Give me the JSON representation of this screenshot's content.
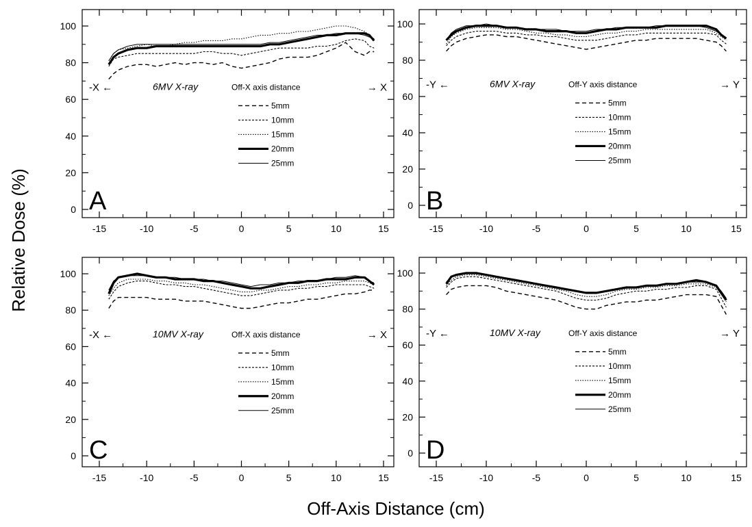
{
  "figure": {
    "ylabel": "Relative Dose (%)",
    "xlabel": "Off-Axis Distance (cm)"
  },
  "chart_data": [
    {
      "type": "line",
      "panel_letter": "A",
      "energy": "6MV X-ray",
      "legend_title": "Off-X axis distance",
      "left_marker": "-X ←",
      "right_marker": "→ X",
      "xlim": [
        -15,
        15
      ],
      "ylim": [
        0,
        100
      ],
      "x_ticks": [
        -15,
        -10,
        -5,
        0,
        5,
        10,
        15
      ],
      "y_ticks": [
        0,
        20,
        40,
        60,
        80,
        100
      ],
      "grid": false,
      "legend_position": "center-right",
      "x": [
        -14,
        -13.5,
        -13,
        -12,
        -11,
        -10,
        -9,
        -8,
        -7,
        -6,
        -5,
        -4,
        -3,
        -2,
        -1,
        0,
        1,
        2,
        3,
        4,
        5,
        6,
        7,
        8,
        9,
        10,
        11,
        12,
        13,
        13.5,
        14
      ],
      "series": [
        {
          "name": "5mm",
          "values": [
            71,
            74,
            76,
            78,
            79,
            79,
            78,
            79,
            80,
            79,
            80,
            80,
            79,
            80,
            78,
            77,
            78,
            79,
            80,
            82,
            83,
            83,
            83,
            84,
            86,
            88,
            91,
            86,
            84,
            86,
            86
          ]
        },
        {
          "name": "10mm",
          "values": [
            78,
            82,
            83,
            84,
            85,
            85,
            85,
            85,
            85,
            85,
            85,
            86,
            86,
            85,
            85,
            84,
            85,
            86,
            87,
            88,
            88,
            88,
            88,
            89,
            89,
            90,
            92,
            93,
            92,
            89,
            88
          ]
        },
        {
          "name": "15mm",
          "values": [
            81,
            85,
            87,
            88,
            89,
            90,
            89,
            89,
            90,
            91,
            91,
            92,
            92,
            92,
            93,
            93,
            94,
            95,
            95,
            96,
            96,
            97,
            97,
            98,
            99,
            100,
            100,
            99,
            97,
            95,
            93
          ]
        },
        {
          "name": "20mm",
          "values": [
            79,
            83,
            85,
            87,
            88,
            88,
            89,
            89,
            89,
            89,
            89,
            89,
            89,
            89,
            89,
            89,
            89,
            89,
            90,
            90,
            91,
            92,
            93,
            94,
            95,
            95,
            96,
            96,
            96,
            95,
            92
          ]
        },
        {
          "name": "25mm",
          "values": [
            81,
            85,
            87,
            89,
            90,
            90,
            90,
            90,
            90,
            90,
            90,
            90,
            90,
            90,
            90,
            90,
            90,
            90,
            91,
            91,
            92,
            93,
            94,
            95,
            95,
            96,
            96,
            96,
            95,
            94,
            93
          ]
        }
      ]
    },
    {
      "type": "line",
      "panel_letter": "B",
      "energy": "6MV X-ray",
      "legend_title": "Off-Y axis distance",
      "left_marker": "-Y ←",
      "right_marker": "→ Y",
      "xlim": [
        -15,
        15
      ],
      "ylim": [
        0,
        100
      ],
      "x_ticks": [
        -15,
        -10,
        -5,
        0,
        5,
        10,
        15
      ],
      "y_ticks": [
        0,
        20,
        40,
        60,
        80,
        100
      ],
      "grid": false,
      "legend_position": "center-right",
      "x": [
        -14,
        -13.5,
        -13,
        -12,
        -11,
        -10,
        -9,
        -8,
        -7,
        -6,
        -5,
        -4,
        -3,
        -2,
        -1,
        0,
        1,
        2,
        3,
        4,
        5,
        6,
        7,
        8,
        9,
        10,
        11,
        12,
        13,
        13.5,
        14
      ],
      "series": [
        {
          "name": "5mm",
          "values": [
            85,
            88,
            90,
            92,
            93,
            94,
            94,
            93,
            93,
            92,
            91,
            90,
            89,
            88,
            87,
            86,
            87,
            88,
            89,
            90,
            91,
            91,
            92,
            92,
            92,
            92,
            92,
            91,
            90,
            88,
            85
          ]
        },
        {
          "name": "10mm",
          "values": [
            88,
            91,
            93,
            95,
            96,
            96,
            96,
            95,
            95,
            94,
            94,
            93,
            93,
            92,
            91,
            91,
            91,
            92,
            93,
            94,
            94,
            95,
            95,
            95,
            95,
            95,
            95,
            95,
            94,
            91,
            89
          ]
        },
        {
          "name": "15mm",
          "values": [
            89,
            93,
            95,
            97,
            98,
            98,
            98,
            97,
            97,
            96,
            95,
            95,
            94,
            94,
            93,
            93,
            94,
            95,
            95,
            96,
            96,
            97,
            97,
            97,
            97,
            97,
            97,
            97,
            95,
            93,
            91
          ]
        },
        {
          "name": "20mm",
          "values": [
            91,
            94,
            96,
            98,
            99,
            99,
            99,
            98,
            98,
            97,
            97,
            96,
            96,
            96,
            95,
            95,
            96,
            97,
            97,
            98,
            98,
            98,
            98,
            99,
            99,
            99,
            99,
            99,
            97,
            94,
            92
          ]
        },
        {
          "name": "25mm",
          "values": [
            91,
            95,
            97,
            99,
            99,
            100,
            99,
            98,
            98,
            97,
            97,
            97,
            97,
            96,
            96,
            96,
            97,
            97,
            98,
            98,
            98,
            98,
            99,
            99,
            99,
            99,
            99,
            98,
            96,
            94,
            92
          ]
        }
      ]
    },
    {
      "type": "line",
      "panel_letter": "C",
      "energy": "10MV X-ray",
      "legend_title": "Off-X axis distance",
      "left_marker": "-X ←",
      "right_marker": "→ X",
      "xlim": [
        -15,
        15
      ],
      "ylim": [
        0,
        100
      ],
      "x_ticks": [
        -15,
        -10,
        -5,
        0,
        5,
        10,
        15
      ],
      "y_ticks": [
        0,
        20,
        40,
        60,
        80,
        100
      ],
      "grid": false,
      "legend_position": "center-right",
      "x": [
        -14,
        -13.5,
        -13,
        -12,
        -11,
        -10,
        -9,
        -8,
        -7,
        -6,
        -5,
        -4,
        -3,
        -2,
        -1,
        0,
        1,
        2,
        3,
        4,
        5,
        6,
        7,
        8,
        9,
        10,
        11,
        12,
        13,
        13.5,
        14
      ],
      "series": [
        {
          "name": "5mm",
          "values": [
            81,
            85,
            87,
            87,
            87,
            87,
            86,
            86,
            86,
            85,
            85,
            85,
            84,
            83,
            82,
            81,
            81,
            82,
            83,
            84,
            84,
            85,
            86,
            86,
            87,
            88,
            89,
            89,
            90,
            91,
            91
          ]
        },
        {
          "name": "10mm",
          "values": [
            86,
            90,
            93,
            95,
            96,
            96,
            95,
            94,
            94,
            93,
            93,
            92,
            91,
            90,
            89,
            88,
            88,
            89,
            90,
            91,
            91,
            92,
            92,
            93,
            93,
            94,
            94,
            94,
            94,
            93,
            92
          ]
        },
        {
          "name": "15mm",
          "values": [
            88,
            92,
            95,
            97,
            97,
            97,
            96,
            96,
            95,
            95,
            94,
            94,
            93,
            92,
            91,
            90,
            90,
            91,
            91,
            92,
            93,
            93,
            94,
            94,
            95,
            95,
            96,
            96,
            96,
            95,
            94
          ]
        },
        {
          "name": "20mm",
          "values": [
            89,
            95,
            98,
            99,
            100,
            99,
            98,
            98,
            97,
            97,
            97,
            96,
            96,
            95,
            94,
            93,
            92,
            92,
            93,
            94,
            95,
            95,
            96,
            96,
            97,
            97,
            97,
            98,
            98,
            96,
            94
          ]
        },
        {
          "name": "25mm",
          "values": [
            91,
            96,
            98,
            99,
            99,
            99,
            98,
            98,
            98,
            97,
            97,
            97,
            96,
            96,
            95,
            94,
            93,
            94,
            94,
            95,
            95,
            96,
            96,
            96,
            97,
            98,
            98,
            99,
            98,
            96,
            95
          ]
        }
      ]
    },
    {
      "type": "line",
      "panel_letter": "D",
      "energy": "10MV X-ray",
      "legend_title": "Off-Y axis distance",
      "left_marker": "-Y ←",
      "right_marker": "→ Y",
      "xlim": [
        -15,
        15
      ],
      "ylim": [
        0,
        100
      ],
      "x_ticks": [
        -15,
        -10,
        -5,
        0,
        5,
        10,
        15
      ],
      "y_ticks": [
        0,
        20,
        40,
        60,
        80,
        100
      ],
      "grid": false,
      "legend_position": "center-right",
      "x": [
        -14,
        -13.5,
        -13,
        -12,
        -11,
        -10,
        -9,
        -8,
        -7,
        -6,
        -5,
        -4,
        -3,
        -2,
        -1,
        0,
        1,
        2,
        3,
        4,
        5,
        6,
        7,
        8,
        9,
        10,
        11,
        12,
        13,
        13.5,
        14
      ],
      "series": [
        {
          "name": "5mm",
          "values": [
            88,
            91,
            92,
            93,
            93,
            93,
            92,
            90,
            89,
            88,
            87,
            86,
            85,
            83,
            81,
            80,
            80,
            82,
            83,
            84,
            84,
            85,
            85,
            86,
            87,
            88,
            88,
            88,
            87,
            82,
            77
          ]
        },
        {
          "name": "10mm",
          "values": [
            92,
            95,
            97,
            98,
            98,
            97,
            96,
            95,
            94,
            93,
            92,
            91,
            90,
            88,
            86,
            85,
            85,
            86,
            88,
            89,
            90,
            90,
            91,
            91,
            92,
            92,
            93,
            93,
            91,
            86,
            81
          ]
        },
        {
          "name": "15mm",
          "values": [
            93,
            96,
            98,
            99,
            99,
            98,
            97,
            96,
            95,
            94,
            93,
            92,
            91,
            90,
            88,
            87,
            87,
            88,
            90,
            91,
            91,
            92,
            92,
            93,
            93,
            94,
            94,
            94,
            92,
            88,
            84
          ]
        },
        {
          "name": "20mm",
          "values": [
            94,
            98,
            99,
            100,
            100,
            99,
            98,
            97,
            96,
            95,
            94,
            93,
            92,
            91,
            90,
            89,
            89,
            90,
            91,
            92,
            92,
            93,
            93,
            94,
            94,
            95,
            96,
            95,
            93,
            89,
            85
          ]
        },
        {
          "name": "25mm",
          "values": [
            95,
            98,
            99,
            100,
            100,
            99,
            98,
            97,
            96,
            95,
            94,
            93,
            92,
            91,
            90,
            89,
            89,
            90,
            91,
            92,
            92,
            93,
            93,
            94,
            94,
            95,
            95,
            95,
            93,
            90,
            86
          ]
        }
      ]
    }
  ]
}
